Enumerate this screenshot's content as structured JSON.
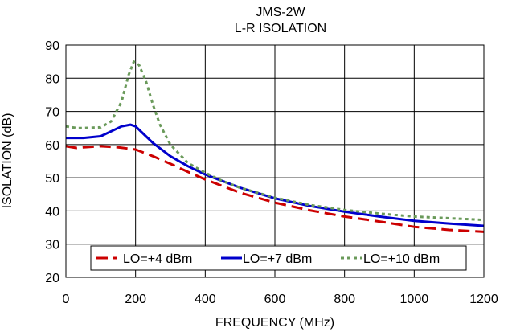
{
  "chart_data": {
    "type": "line",
    "title": "JMS-2W",
    "subtitle": "L-R ISOLATION",
    "xlabel": "FREQUENCY (MHz)",
    "ylabel": "ISOLATION (dB)",
    "xlim": [
      0,
      1200
    ],
    "ylim": [
      20,
      90
    ],
    "xticks": [
      0,
      200,
      400,
      600,
      800,
      1000,
      1200
    ],
    "yticks": [
      20,
      30,
      40,
      50,
      60,
      70,
      80,
      90
    ],
    "grid": true,
    "legend_position": "bottom",
    "series": [
      {
        "name": "LO=+4 dBm",
        "color": "#cc0000",
        "dash": "dashed",
        "x": [
          0,
          30,
          50,
          100,
          150,
          200,
          250,
          300,
          350,
          400,
          450,
          500,
          600,
          700,
          800,
          900,
          1000,
          1100,
          1200
        ],
        "y": [
          59.5,
          59.0,
          59.2,
          59.5,
          59.2,
          58.5,
          56.5,
          54.2,
          51.8,
          49.5,
          47.5,
          45.5,
          42.5,
          40.2,
          38.3,
          36.8,
          35.2,
          34.3,
          33.7
        ]
      },
      {
        "name": "LO=+7 dBm",
        "color": "#0000cc",
        "dash": "solid",
        "x": [
          0,
          30,
          50,
          100,
          130,
          160,
          185,
          200,
          225,
          250,
          300,
          350,
          400,
          450,
          500,
          600,
          700,
          800,
          900,
          1000,
          1100,
          1200
        ],
        "y": [
          62.0,
          62.0,
          62.0,
          62.5,
          64.0,
          65.5,
          66.0,
          65.5,
          63.0,
          60.5,
          56.5,
          53.5,
          51.0,
          49.0,
          47.0,
          43.8,
          41.5,
          39.8,
          38.3,
          37.0,
          36.2,
          35.5
        ]
      },
      {
        "name": "LO=+10 dBm",
        "color": "#6a9a5a",
        "dash": "dotted",
        "x": [
          0,
          30,
          50,
          100,
          130,
          160,
          180,
          195,
          210,
          230,
          250,
          270,
          300,
          350,
          400,
          450,
          500,
          600,
          700,
          800,
          900,
          1000,
          1100,
          1200
        ],
        "y": [
          65.5,
          65.0,
          65.0,
          65.2,
          67.0,
          73.0,
          81.0,
          85.0,
          84.0,
          79.0,
          72.0,
          66.0,
          60.0,
          54.5,
          51.5,
          49.0,
          47.0,
          44.0,
          41.8,
          40.3,
          39.2,
          38.3,
          37.8,
          37.3
        ]
      }
    ]
  }
}
